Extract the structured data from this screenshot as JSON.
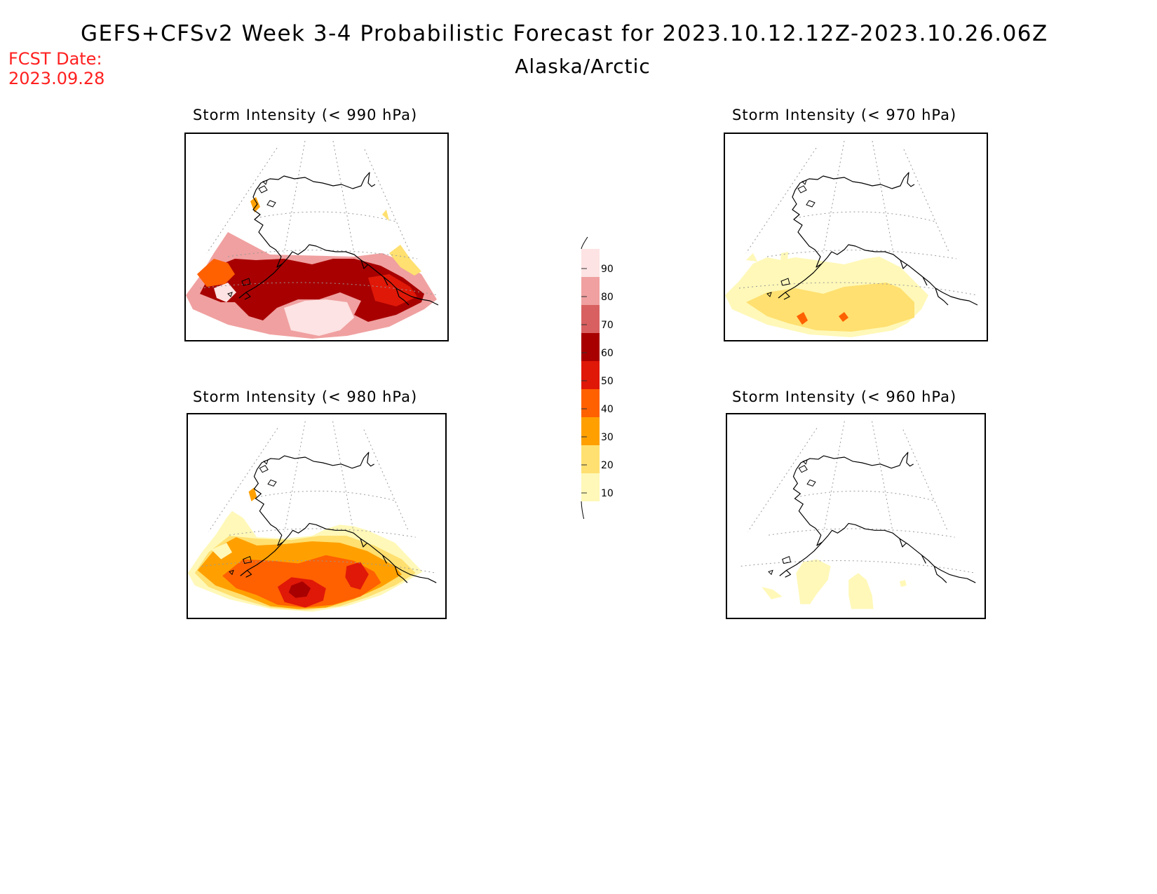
{
  "header": {
    "title": "GEFS+CFSv2 Week 3-4 Probabilistic Forecast for 2023.10.12.12Z-2023.10.26.06Z",
    "region": "Alaska/Arctic",
    "fcst_label": "FCST Date:",
    "fcst_date": "2023.09.28"
  },
  "panels": [
    {
      "title": "Storm Intensity (< 990 hPa)",
      "level": "high"
    },
    {
      "title": "Storm Intensity (< 970 hPa)",
      "level": "low"
    },
    {
      "title": "Storm Intensity (< 980 hPa)",
      "level": "mid"
    },
    {
      "title": "Storm Intensity (< 960 hPa)",
      "level": "verylow"
    }
  ],
  "legend": {
    "labels": [
      "90",
      "80",
      "70",
      "60",
      "50",
      "40",
      "30",
      "20",
      "10"
    ],
    "colors": [
      "#fde3e3",
      "#f0a0a0",
      "#d86060",
      "#a80000",
      "#e01808",
      "#ff6000",
      "#ffa000",
      "#ffe070",
      "#fff8b8"
    ]
  },
  "colors": {
    "fcst_text": "#ff2020",
    "coastline": "#000000",
    "gridline": "#999999"
  }
}
